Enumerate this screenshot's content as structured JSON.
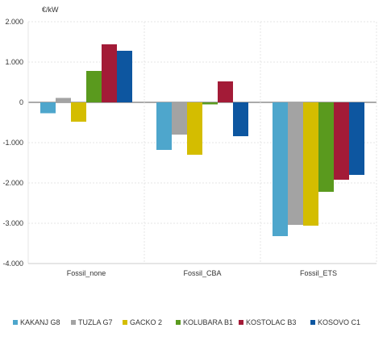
{
  "chart_data": {
    "type": "bar",
    "unit": "€/kW",
    "categories": [
      "Fossil_none",
      "Fossil_CBA",
      "Fossil_ETS"
    ],
    "ylim": [
      -4000,
      2000
    ],
    "yticks": [
      2000,
      1000,
      0,
      -1000,
      -2000,
      -3000,
      -4000
    ],
    "ytick_labels": [
      "2.000",
      "1.000",
      "0",
      "-1.000",
      "-2.000",
      "-3.000",
      "-4.000"
    ],
    "grid": true,
    "legend_position": "bottom",
    "series": [
      {
        "name": "KAKANJ G8",
        "color": "#4ea6cc",
        "values": [
          -270,
          -1180,
          -3320
        ]
      },
      {
        "name": "TUZLA G7",
        "color": "#a3a3a3",
        "values": [
          110,
          -800,
          -3040
        ]
      },
      {
        "name": "GACKO 2",
        "color": "#d4bd00",
        "values": [
          -480,
          -1300,
          -3060
        ]
      },
      {
        "name": "KOLUBARA B1",
        "color": "#5a9a1e",
        "values": [
          780,
          -50,
          -2220
        ]
      },
      {
        "name": "KOSTOLAC B3",
        "color": "#a31b37",
        "values": [
          1440,
          520,
          -1920
        ]
      },
      {
        "name": "KOSOVO C1",
        "color": "#0d56a0",
        "values": [
          1280,
          -840,
          -1800
        ]
      }
    ]
  }
}
